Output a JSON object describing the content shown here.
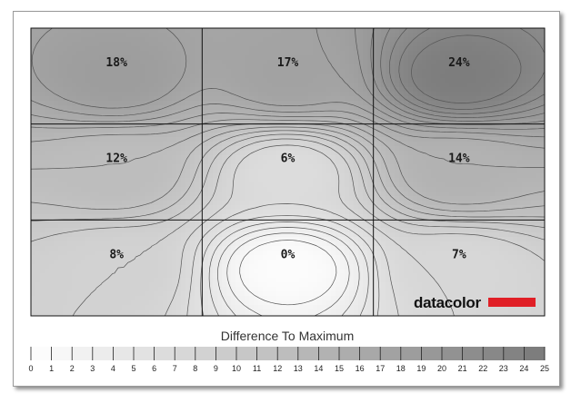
{
  "chart_data": {
    "type": "heatmap",
    "rows": 3,
    "cols": 3,
    "values": [
      [
        18,
        17,
        24
      ],
      [
        12,
        6,
        14
      ],
      [
        8,
        0,
        7
      ]
    ],
    "value_labels": [
      [
        "18%",
        "17%",
        "24%"
      ],
      [
        "12%",
        "6%",
        "14%"
      ],
      [
        "8%",
        "0%",
        "7%"
      ]
    ],
    "legend_title": "Difference To Maximum",
    "scale_min": 0,
    "scale_max": 25,
    "scale_ticks": [
      "0",
      "1",
      "2",
      "3",
      "4",
      "5",
      "6",
      "7",
      "8",
      "9",
      "10",
      "11",
      "12",
      "13",
      "14",
      "15",
      "16",
      "17",
      "18",
      "19",
      "20",
      "21",
      "22",
      "23",
      "24",
      "25"
    ],
    "color_min": "#fcfcfc",
    "color_max": "#787878",
    "contours": true,
    "brand": "datacolor",
    "brand_color": "#e01f26"
  }
}
